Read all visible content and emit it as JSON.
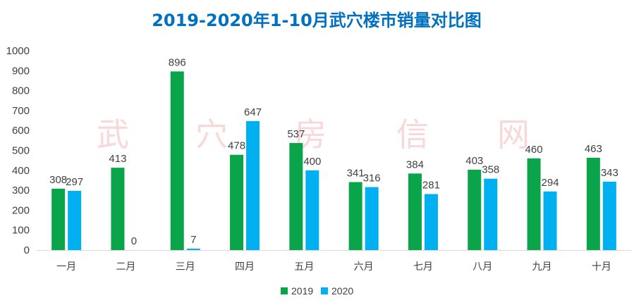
{
  "chart_data": {
    "type": "bar",
    "title": "2019-2020年1-10月武穴楼市销量对比图",
    "categories": [
      "一月",
      "二月",
      "三月",
      "四月",
      "五月",
      "六月",
      "七月",
      "八月",
      "九月",
      "十月"
    ],
    "series": [
      {
        "name": "2019",
        "color": "#0aa54a",
        "values": [
          308,
          413,
          896,
          478,
          537,
          341,
          384,
          403,
          460,
          463
        ]
      },
      {
        "name": "2020",
        "color": "#00b0f0",
        "values": [
          297,
          0,
          7,
          647,
          400,
          316,
          281,
          358,
          294,
          343
        ]
      }
    ],
    "ylim": [
      0,
      1000
    ],
    "yticks": [
      0,
      100,
      200,
      300,
      400,
      500,
      600,
      700,
      800,
      900,
      1000
    ],
    "xlabel": "",
    "ylabel": "",
    "grid": false,
    "legend": "bottom-center",
    "title_color": "#0070c0",
    "watermark": [
      "武",
      "穴",
      "房",
      "信",
      "网"
    ]
  }
}
